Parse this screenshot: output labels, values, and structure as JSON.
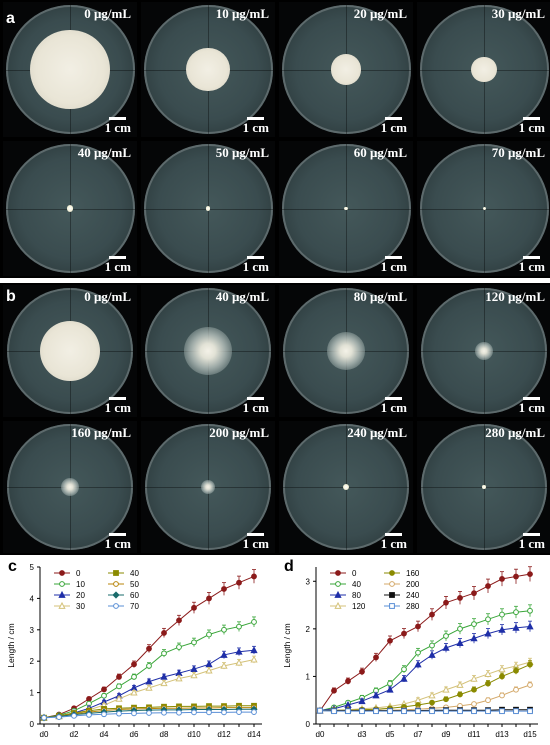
{
  "panels": {
    "a": {
      "letter": "a",
      "tiles": [
        {
          "label": "0 μg/mL",
          "colony": 0.62,
          "type": "white"
        },
        {
          "label": "10 μg/mL",
          "colony": 0.34,
          "type": "white"
        },
        {
          "label": "20 μg/mL",
          "colony": 0.24,
          "type": "white"
        },
        {
          "label": "30 μg/mL",
          "colony": 0.2,
          "type": "white"
        },
        {
          "label": "40 μg/mL",
          "colony": 0.05,
          "type": "dot"
        },
        {
          "label": "50 μg/mL",
          "colony": 0.035,
          "type": "dot"
        },
        {
          "label": "60 μg/mL",
          "colony": 0.03,
          "type": "dot"
        },
        {
          "label": "70 μg/mL",
          "colony": 0.02,
          "type": "dot"
        }
      ],
      "scale_label": "1 cm"
    },
    "b": {
      "letter": "b",
      "tiles": [
        {
          "label": "0 μg/mL",
          "colony": 0.48,
          "type": "white"
        },
        {
          "label": "40 μg/mL",
          "colony": 0.38,
          "type": "halo"
        },
        {
          "label": "80 μg/mL",
          "colony": 0.3,
          "type": "halo"
        },
        {
          "label": "120 μg/mL",
          "colony": 0.14,
          "type": "halo"
        },
        {
          "label": "160 μg/mL",
          "colony": 0.15,
          "type": "halo"
        },
        {
          "label": "200 μg/mL",
          "colony": 0.11,
          "type": "halo"
        },
        {
          "label": "240 μg/mL",
          "colony": 0.05,
          "type": "dot"
        },
        {
          "label": "280 μg/mL",
          "colony": 0.025,
          "type": "dot"
        }
      ],
      "scale_label": "1 cm"
    }
  },
  "chart_data": [
    {
      "panel": "c",
      "type": "line",
      "ylabel": "Length / cm",
      "ylim": [
        0,
        5
      ],
      "yticks": [
        0,
        1,
        2,
        3,
        4,
        5
      ],
      "categories": [
        "d0",
        "d1",
        "d2",
        "d3",
        "d4",
        "d5",
        "d6",
        "d7",
        "d8",
        "d9",
        "d10",
        "d11",
        "d12",
        "d13",
        "d14"
      ],
      "tick_labels": [
        "d0",
        "d2",
        "d4",
        "d6",
        "d8",
        "d10",
        "d12",
        "d14"
      ],
      "legend_cols": [
        [
          "0",
          "10",
          "20",
          "30"
        ],
        [
          "40",
          "50",
          "60",
          "70"
        ]
      ],
      "series": [
        {
          "name": "0",
          "color": "#8b1a1a",
          "marker": "circle-filled",
          "values": [
            0.2,
            0.3,
            0.5,
            0.8,
            1.1,
            1.5,
            1.9,
            2.4,
            2.9,
            3.3,
            3.7,
            4.0,
            4.3,
            4.5,
            4.7
          ]
        },
        {
          "name": "10",
          "color": "#3aa63a",
          "marker": "circle-open",
          "values": [
            0.2,
            0.28,
            0.42,
            0.65,
            0.9,
            1.2,
            1.5,
            1.85,
            2.25,
            2.45,
            2.6,
            2.85,
            3.0,
            3.1,
            3.25
          ]
        },
        {
          "name": "20",
          "color": "#1f2fa8",
          "marker": "triangle-filled",
          "values": [
            0.2,
            0.25,
            0.35,
            0.5,
            0.7,
            0.9,
            1.15,
            1.35,
            1.5,
            1.62,
            1.75,
            1.9,
            2.2,
            2.3,
            2.35
          ]
        },
        {
          "name": "30",
          "color": "#d4c27a",
          "marker": "triangle-open",
          "values": [
            0.2,
            0.24,
            0.32,
            0.45,
            0.6,
            0.8,
            1.0,
            1.15,
            1.3,
            1.45,
            1.55,
            1.7,
            1.85,
            1.95,
            2.05
          ]
        },
        {
          "name": "40",
          "color": "#8a8a00",
          "marker": "square-filled",
          "values": [
            0.2,
            0.26,
            0.35,
            0.42,
            0.48,
            0.5,
            0.52,
            0.53,
            0.55,
            0.56,
            0.56,
            0.57,
            0.57,
            0.58,
            0.58
          ]
        },
        {
          "name": "50",
          "color": "#b8860b",
          "marker": "circle-open",
          "values": [
            0.2,
            0.25,
            0.32,
            0.38,
            0.43,
            0.46,
            0.48,
            0.49,
            0.5,
            0.5,
            0.51,
            0.51,
            0.52,
            0.52,
            0.52
          ]
        },
        {
          "name": "60",
          "color": "#1a6b6b",
          "marker": "diamond-filled",
          "values": [
            0.2,
            0.24,
            0.3,
            0.34,
            0.38,
            0.41,
            0.43,
            0.44,
            0.45,
            0.45,
            0.46,
            0.46,
            0.46,
            0.47,
            0.47
          ]
        },
        {
          "name": "70",
          "color": "#5a8fd6",
          "marker": "circle-open",
          "values": [
            0.2,
            0.22,
            0.26,
            0.29,
            0.31,
            0.33,
            0.34,
            0.35,
            0.36,
            0.36,
            0.37,
            0.37,
            0.37,
            0.38,
            0.38
          ]
        }
      ]
    },
    {
      "panel": "d",
      "type": "line",
      "ylabel": "Length / cm",
      "ylim": [
        0,
        3.3
      ],
      "yticks": [
        0,
        1,
        2,
        3
      ],
      "categories": [
        "d0",
        "d1",
        "d2",
        "d3",
        "d4",
        "d5",
        "d6",
        "d7",
        "d8",
        "d9",
        "d10",
        "d11",
        "d12",
        "d13",
        "d14",
        "d15"
      ],
      "tick_labels": [
        "d0",
        "d3",
        "d5",
        "d7",
        "d9",
        "d11",
        "d13",
        "d15"
      ],
      "legend_cols": [
        [
          "0",
          "40",
          "80",
          "120"
        ],
        [
          "160",
          "200",
          "240",
          "280"
        ]
      ],
      "series": [
        {
          "name": "0",
          "color": "#8b1a1a",
          "marker": "circle-filled",
          "values": [
            0.28,
            0.7,
            0.9,
            1.1,
            1.4,
            1.75,
            1.9,
            2.05,
            2.3,
            2.55,
            2.65,
            2.75,
            2.9,
            3.05,
            3.1,
            3.15
          ]
        },
        {
          "name": "40",
          "color": "#3aa63a",
          "marker": "circle-open",
          "values": [
            0.28,
            0.35,
            0.45,
            0.55,
            0.7,
            0.85,
            1.15,
            1.5,
            1.65,
            1.85,
            2.0,
            2.1,
            2.2,
            2.3,
            2.35,
            2.38
          ]
        },
        {
          "name": "80",
          "color": "#1f2fa8",
          "marker": "triangle-filled",
          "values": [
            0.28,
            0.32,
            0.4,
            0.48,
            0.6,
            0.72,
            0.95,
            1.25,
            1.45,
            1.6,
            1.7,
            1.8,
            1.9,
            1.98,
            2.02,
            2.05
          ]
        },
        {
          "name": "120",
          "color": "#d4c27a",
          "marker": "triangle-open",
          "values": [
            0.28,
            0.29,
            0.3,
            0.32,
            0.34,
            0.37,
            0.42,
            0.5,
            0.6,
            0.72,
            0.82,
            0.95,
            1.05,
            1.15,
            1.22,
            1.3
          ]
        },
        {
          "name": "160",
          "color": "#8a8a00",
          "marker": "circle-filled",
          "values": [
            0.28,
            0.29,
            0.29,
            0.3,
            0.31,
            0.33,
            0.36,
            0.4,
            0.45,
            0.52,
            0.62,
            0.72,
            0.85,
            1.0,
            1.12,
            1.25
          ]
        },
        {
          "name": "200",
          "color": "#d4a96a",
          "marker": "circle-open",
          "values": [
            0.28,
            0.28,
            0.28,
            0.28,
            0.29,
            0.29,
            0.3,
            0.31,
            0.33,
            0.35,
            0.38,
            0.42,
            0.5,
            0.6,
            0.72,
            0.82
          ]
        },
        {
          "name": "240",
          "color": "#111111",
          "marker": "square-filled",
          "values": [
            0.28,
            0.28,
            0.28,
            0.28,
            0.28,
            0.28,
            0.28,
            0.28,
            0.29,
            0.29,
            0.29,
            0.29,
            0.29,
            0.3,
            0.3,
            0.3
          ]
        },
        {
          "name": "280",
          "color": "#5a8fd6",
          "marker": "square-open",
          "values": [
            0.28,
            0.27,
            0.27,
            0.27,
            0.27,
            0.27,
            0.27,
            0.27,
            0.27,
            0.27,
            0.27,
            0.27,
            0.27,
            0.27,
            0.27,
            0.27
          ]
        }
      ]
    }
  ]
}
